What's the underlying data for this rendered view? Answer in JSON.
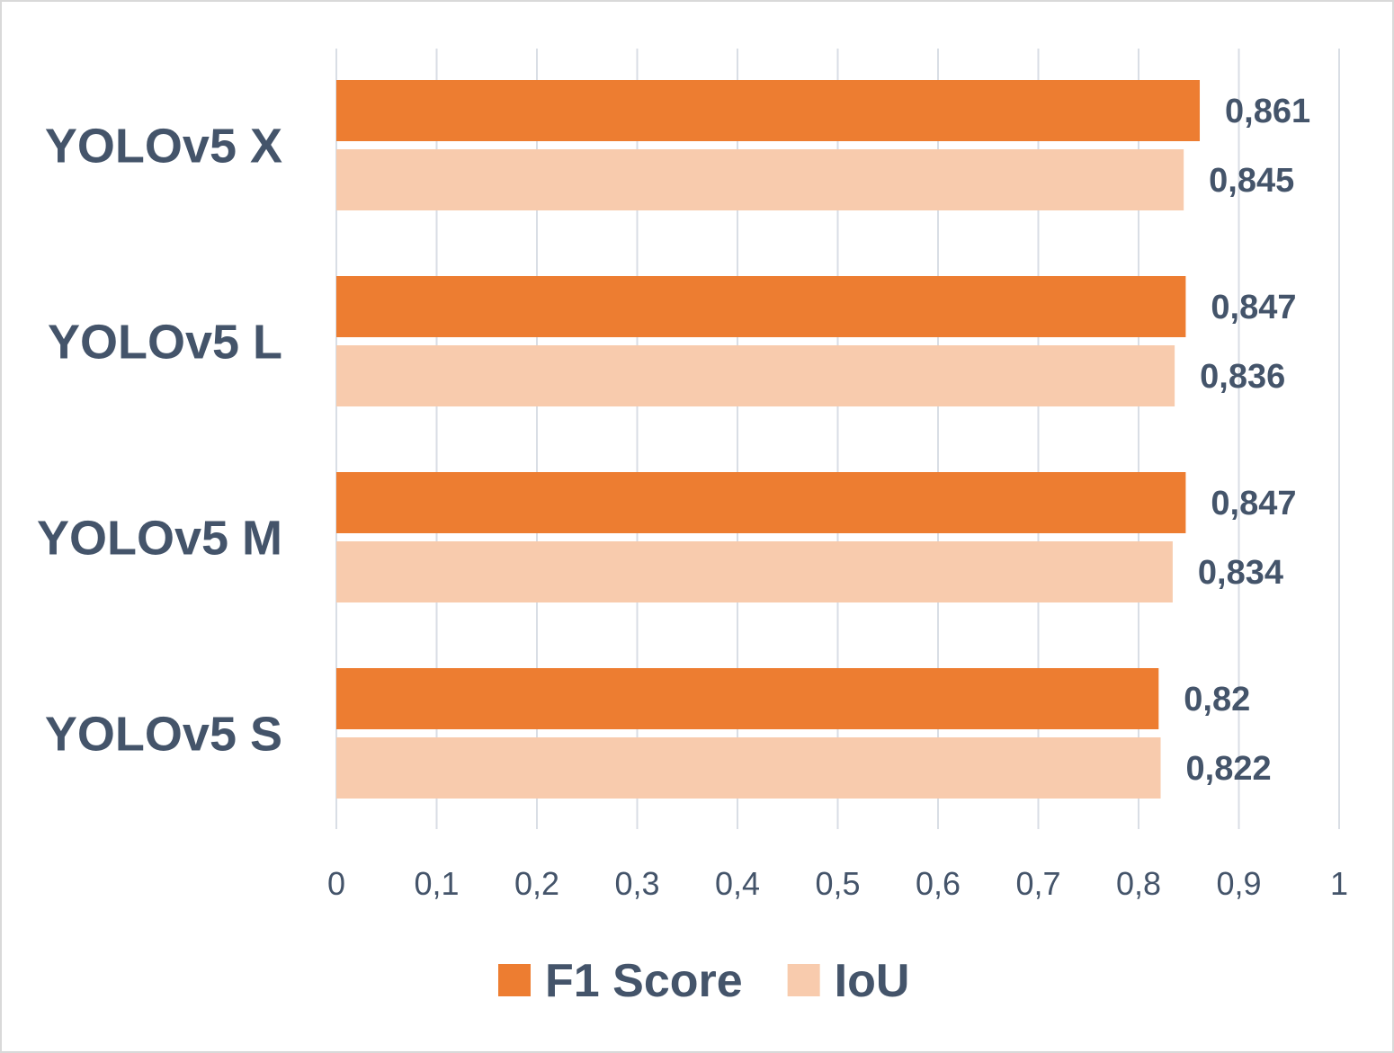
{
  "chart_data": {
    "type": "bar",
    "orientation": "horizontal",
    "categories": [
      "YOLOv5 X",
      "YOLOv5 L",
      "YOLOv5 M",
      "YOLOv5 S"
    ],
    "series": [
      {
        "name": "F1 Score",
        "color": "#ed7d31",
        "values": [
          0.861,
          0.847,
          0.847,
          0.82
        ],
        "value_labels": [
          "0,861",
          "0,847",
          "0,847",
          "0,82"
        ]
      },
      {
        "name": "IoU",
        "color": "#f8cbad",
        "values": [
          0.845,
          0.836,
          0.834,
          0.822
        ],
        "value_labels": [
          "0,845",
          "0,836",
          "0,834",
          "0,822"
        ]
      }
    ],
    "xlim": [
      0,
      1
    ],
    "ticks": [
      0,
      0.1,
      0.2,
      0.3,
      0.4,
      0.5,
      0.6,
      0.7,
      0.8,
      0.9,
      1
    ],
    "tick_labels": [
      "0",
      "0,1",
      "0,2",
      "0,3",
      "0,4",
      "0,5",
      "0,6",
      "0,7",
      "0,8",
      "0,9",
      "1"
    ],
    "grid": true,
    "grid_color": "#d9dee5",
    "text_color": "#44546a",
    "legend_position": "bottom"
  }
}
